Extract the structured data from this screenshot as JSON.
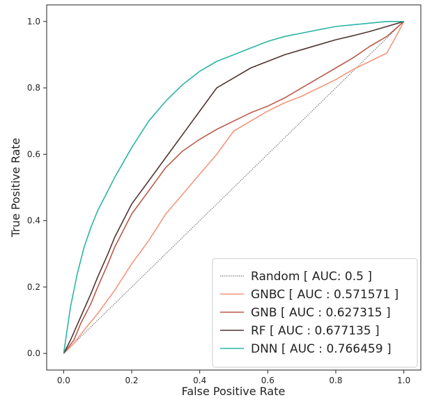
{
  "chart_data": {
    "type": "line",
    "xlabel": "False Positive Rate",
    "ylabel": "True Positive Rate",
    "xlim": [
      -0.05,
      1.05
    ],
    "ylim": [
      -0.05,
      1.05
    ],
    "xticks": [
      "0.0",
      "0.2",
      "0.4",
      "0.6",
      "0.8",
      "1.0"
    ],
    "yticks": [
      "0.0",
      "0.2",
      "0.4",
      "0.6",
      "0.8",
      "1.0"
    ],
    "grid": false,
    "legend_position": "bottom-right",
    "series": [
      {
        "name": "Random [ AUC: 0.5 ]",
        "color": "#555555",
        "style": "dotted",
        "x": [
          0.0,
          1.0
        ],
        "y": [
          0.0,
          1.0
        ]
      },
      {
        "name": "GNBC [ AUC : 0.571571 ]",
        "color": "#f4967c",
        "style": "solid",
        "x": [
          0.0,
          0.03,
          0.06,
          0.1,
          0.15,
          0.2,
          0.25,
          0.3,
          0.35,
          0.4,
          0.45,
          0.5,
          0.55,
          0.6,
          0.65,
          0.7,
          0.75,
          0.8,
          0.85,
          0.9,
          0.95,
          0.98,
          1.0
        ],
        "y": [
          0.0,
          0.03,
          0.07,
          0.12,
          0.19,
          0.27,
          0.34,
          0.42,
          0.48,
          0.54,
          0.6,
          0.67,
          0.7,
          0.73,
          0.755,
          0.775,
          0.8,
          0.825,
          0.855,
          0.88,
          0.905,
          0.96,
          1.0
        ]
      },
      {
        "name": "GNB [ AUC : 0.627315 ]",
        "color": "#b95a48",
        "style": "solid",
        "x": [
          0.0,
          0.03,
          0.05,
          0.08,
          0.1,
          0.13,
          0.15,
          0.2,
          0.25,
          0.3,
          0.35,
          0.4,
          0.45,
          0.5,
          0.55,
          0.6,
          0.65,
          0.7,
          0.75,
          0.8,
          0.85,
          0.9,
          0.95,
          1.0
        ],
        "y": [
          0.0,
          0.04,
          0.09,
          0.15,
          0.2,
          0.27,
          0.32,
          0.42,
          0.49,
          0.56,
          0.61,
          0.645,
          0.675,
          0.7,
          0.725,
          0.745,
          0.77,
          0.8,
          0.83,
          0.86,
          0.89,
          0.925,
          0.955,
          1.0
        ]
      },
      {
        "name": "RF [ AUC : 0.677135 ]",
        "color": "#4f3530",
        "style": "solid",
        "x": [
          0.0,
          0.02,
          0.05,
          0.08,
          0.1,
          0.13,
          0.15,
          0.2,
          0.25,
          0.3,
          0.35,
          0.4,
          0.45,
          0.5,
          0.55,
          0.6,
          0.65,
          0.7,
          0.75,
          0.8,
          0.85,
          0.9,
          0.95,
          1.0
        ],
        "y": [
          0.0,
          0.04,
          0.11,
          0.18,
          0.23,
          0.3,
          0.35,
          0.45,
          0.52,
          0.59,
          0.66,
          0.73,
          0.8,
          0.83,
          0.86,
          0.88,
          0.9,
          0.915,
          0.93,
          0.945,
          0.957,
          0.97,
          0.985,
          1.0
        ]
      },
      {
        "name": "DNN [ AUC : 0.766459 ]",
        "color": "#2ab5a5",
        "style": "solid",
        "x": [
          0.0,
          0.01,
          0.02,
          0.04,
          0.06,
          0.08,
          0.1,
          0.13,
          0.15,
          0.2,
          0.25,
          0.3,
          0.35,
          0.4,
          0.45,
          0.5,
          0.55,
          0.6,
          0.65,
          0.7,
          0.75,
          0.8,
          0.85,
          0.9,
          0.95,
          1.0
        ],
        "y": [
          0.0,
          0.07,
          0.14,
          0.24,
          0.32,
          0.38,
          0.43,
          0.49,
          0.53,
          0.62,
          0.7,
          0.76,
          0.81,
          0.85,
          0.88,
          0.9,
          0.92,
          0.94,
          0.955,
          0.965,
          0.975,
          0.985,
          0.99,
          0.995,
          1.0,
          1.0
        ]
      }
    ]
  }
}
